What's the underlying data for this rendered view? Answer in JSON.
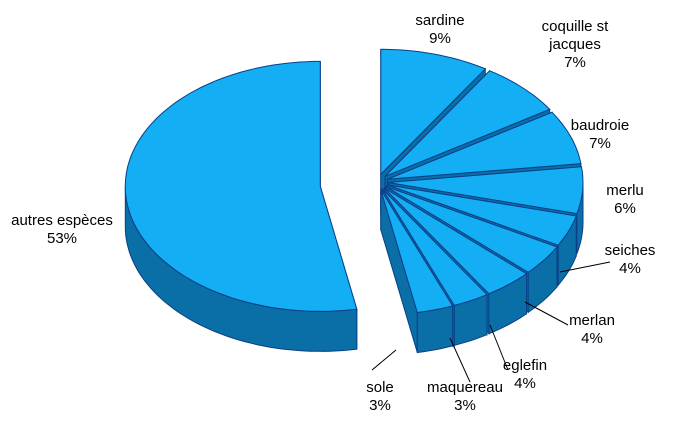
{
  "chart_data": {
    "type": "pie",
    "categories": [
      "sardine",
      "coquille st jacques",
      "baudroie",
      "merlu",
      "seiches",
      "merlan",
      "eglefin",
      "maquereau",
      "sole",
      "autres espèces"
    ],
    "values": [
      9,
      7,
      7,
      6,
      4,
      4,
      4,
      3,
      3,
      53
    ],
    "value_labels": [
      "9%",
      "7%",
      "7%",
      "6%",
      "4%",
      "4%",
      "4%",
      "3%",
      "3%",
      "53%"
    ],
    "color": "#14aef5",
    "side_color": "#0a6fa6",
    "edge_color": "#0b3f88"
  }
}
